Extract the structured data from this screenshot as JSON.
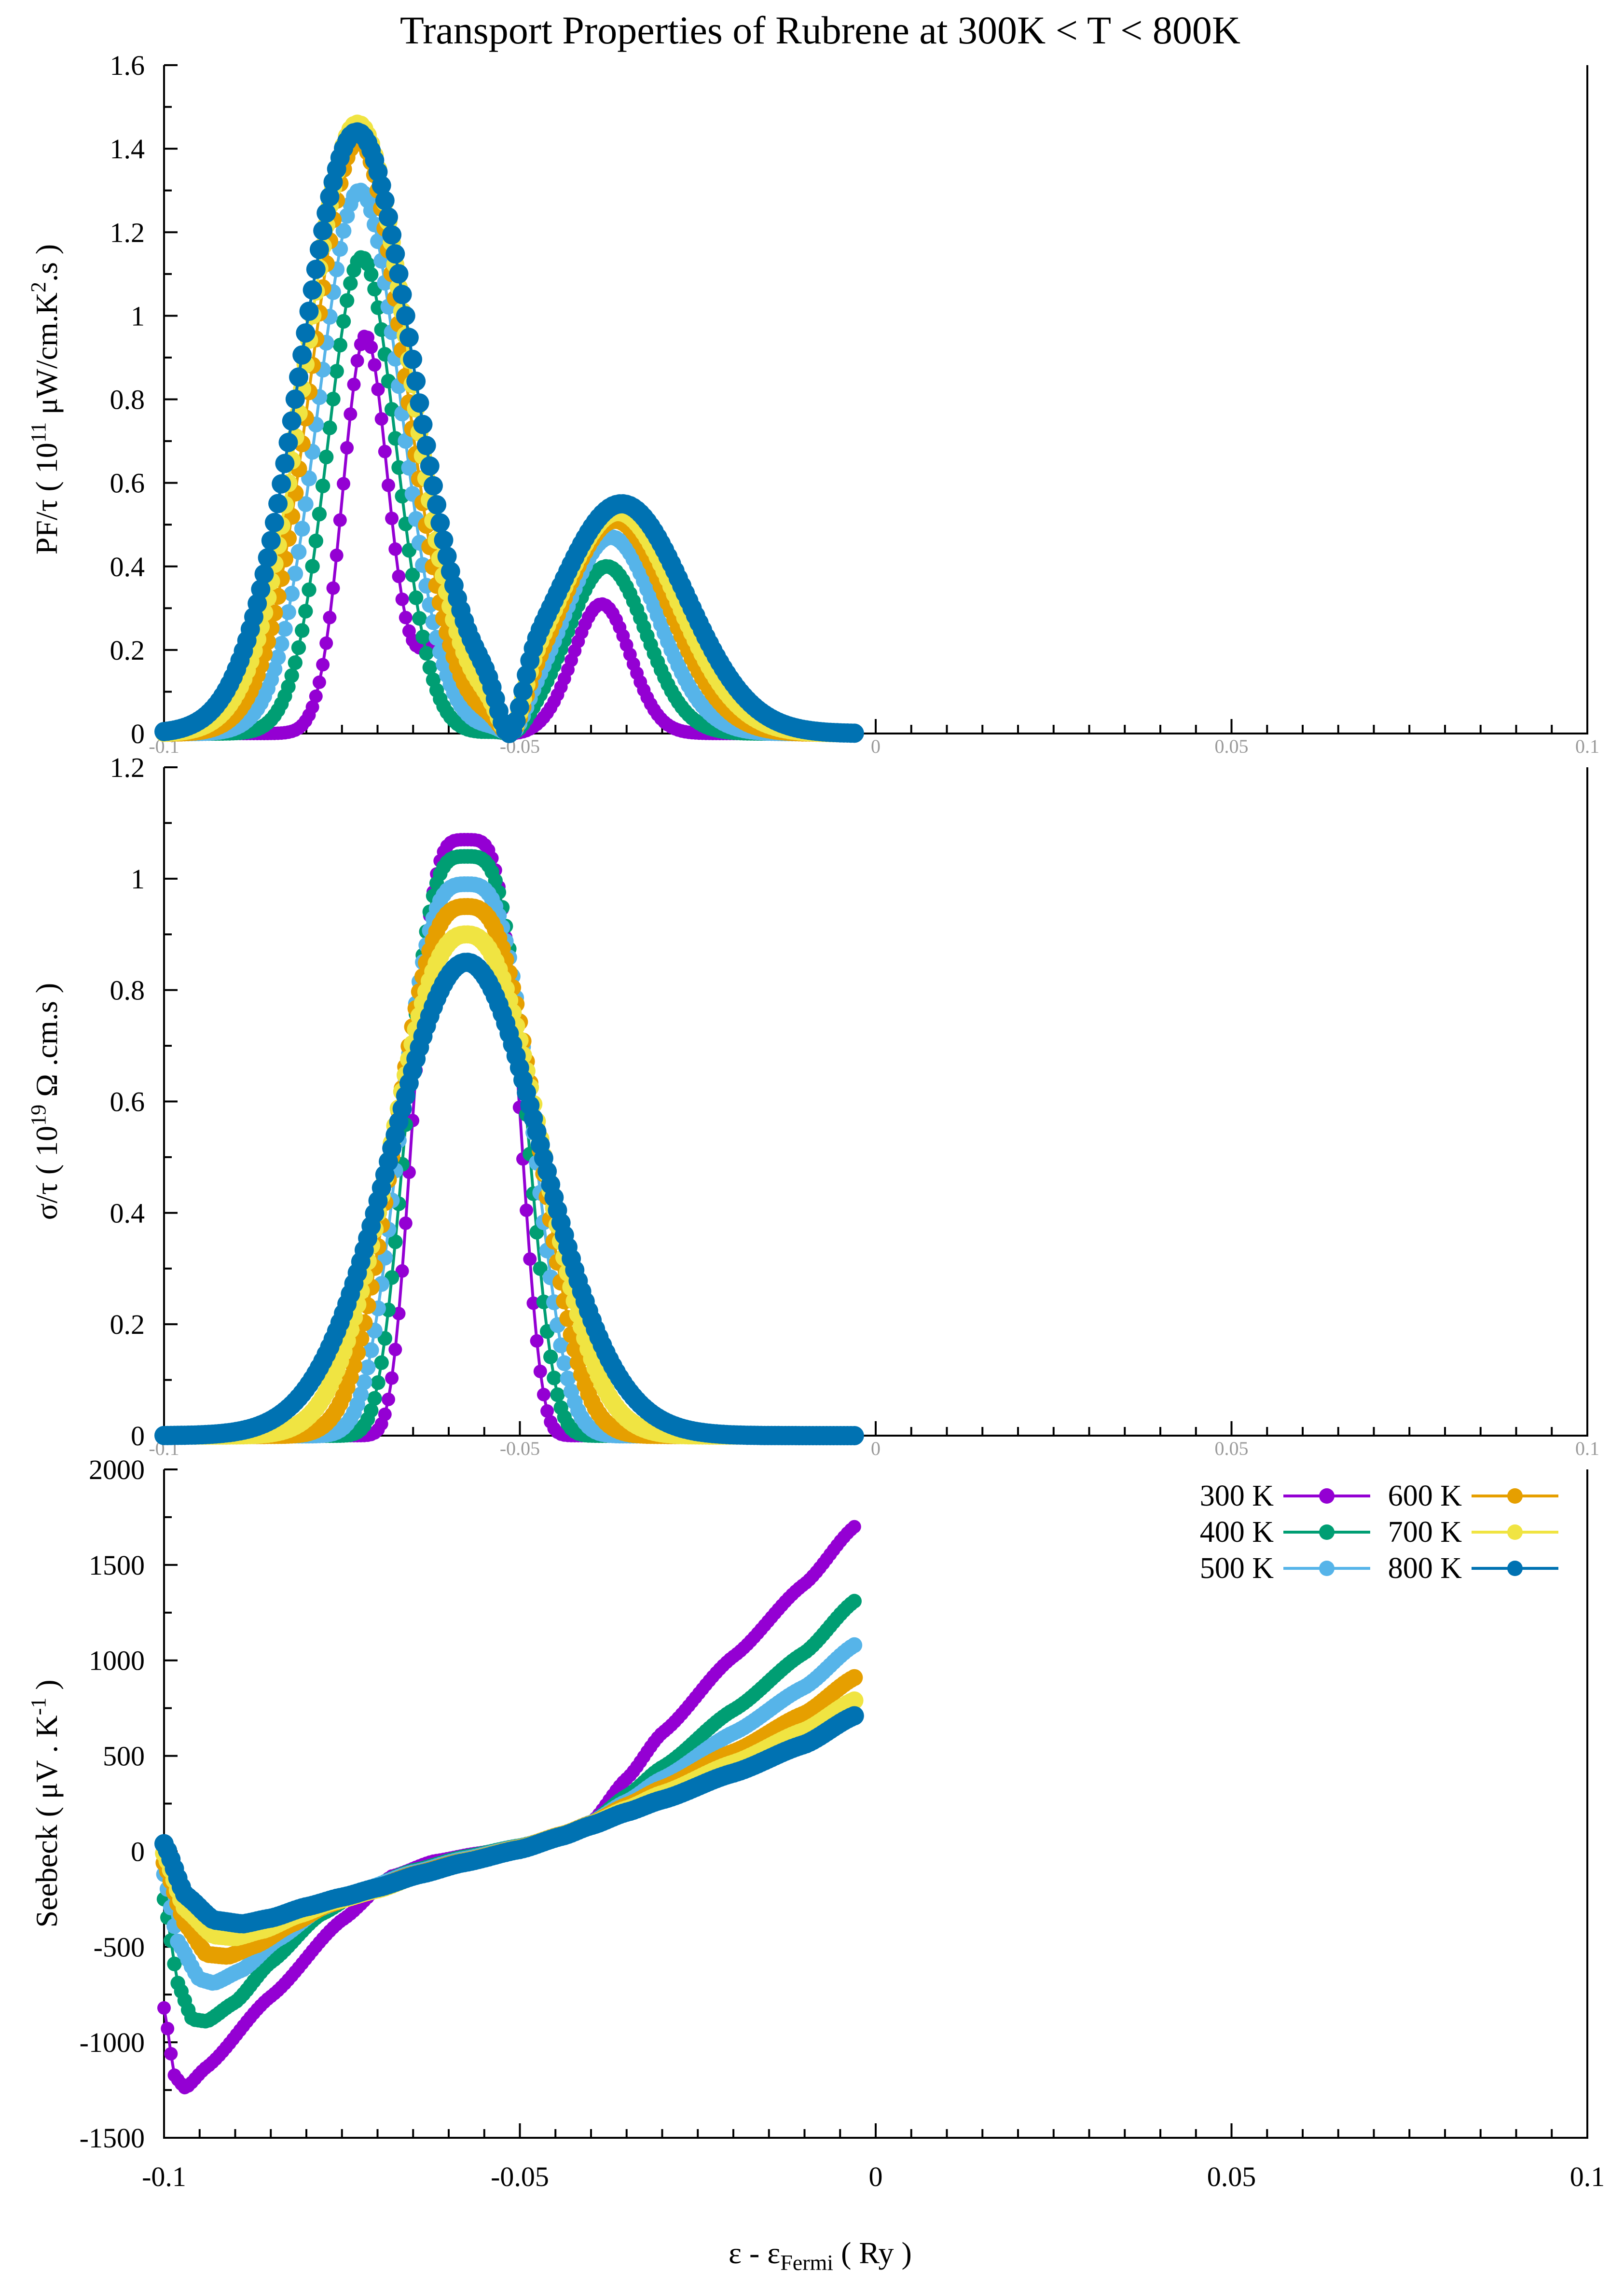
{
  "title": "Transport Properties of Rubrene at  300K < T < 800K",
  "xlabel": {
    "main": "ε - ε",
    "sub": "Fermi",
    "unit": " ( Ry )"
  },
  "colors": {
    "300 K": "#9400d3",
    "400 K": "#009e73",
    "500 K": "#56b4e9",
    "600 K": "#e69f00",
    "700 K": "#f0e442",
    "800 K": "#0072b2"
  },
  "legend": [
    "300 K",
    "400 K",
    "500 K",
    "600 K",
    "700 K",
    "800 K"
  ],
  "chart_data": [
    {
      "id": "pf",
      "type": "scatter",
      "ylabel": {
        "pre": "PF/τ ( 10",
        "sup1": "11",
        "mid": " μW/cm.K",
        "sup2": "2",
        "post": ".s )"
      },
      "xlim": [
        -0.1,
        0.1
      ],
      "ylim": [
        0,
        1.6
      ],
      "xticks": [
        "-0.1",
        "-0.05",
        "0",
        "0.05",
        "0.1"
      ],
      "yticks": [
        "0",
        "0.2",
        "0.4",
        "0.6",
        "0.8",
        "1",
        "1.2",
        "1.4",
        "1.6"
      ],
      "x_range": [
        -0.1,
        -0.003
      ],
      "series": [
        {
          "name": "300 K",
          "peak1": {
            "x": -0.0717,
            "y": 0.95,
            "w": 0.0032
          },
          "shoulder": {
            "x": -0.061,
            "y": 0.22,
            "w": 0.0035
          },
          "peak2": {
            "x": -0.0385,
            "y": 0.31,
            "w": 0.004
          },
          "dip_x": -0.0515
        },
        {
          "name": "400 K",
          "peak1": {
            "x": -0.0722,
            "y": 1.14,
            "w": 0.0048
          },
          "peak2": {
            "x": -0.0378,
            "y": 0.4,
            "w": 0.0055
          },
          "dip_x": -0.0515
        },
        {
          "name": "500 K",
          "peak1": {
            "x": -0.0725,
            "y": 1.3,
            "w": 0.0058
          },
          "peak2": {
            "x": -0.0372,
            "y": 0.47,
            "w": 0.0065
          },
          "dip_x": -0.0515
        },
        {
          "name": "600 K",
          "peak1": {
            "x": -0.0727,
            "y": 1.42,
            "w": 0.0066
          },
          "peak2": {
            "x": -0.0366,
            "y": 0.51,
            "w": 0.0075
          },
          "dip_x": -0.0515
        },
        {
          "name": "700 K",
          "peak1": {
            "x": -0.0728,
            "y": 1.46,
            "w": 0.0073
          },
          "peak2": {
            "x": -0.0362,
            "y": 0.53,
            "w": 0.0083
          },
          "dip_x": -0.0515
        },
        {
          "name": "800 K",
          "peak1": {
            "x": -0.0729,
            "y": 1.44,
            "w": 0.008
          },
          "peak2": {
            "x": -0.0357,
            "y": 0.55,
            "w": 0.009
          },
          "dip_x": -0.0515
        }
      ]
    },
    {
      "id": "sigma",
      "type": "scatter",
      "ylabel": {
        "pre": "σ/τ  ( 10",
        "sup1": "19",
        "mid": " Ω .cm.s )",
        "sup2": "",
        "post": ""
      },
      "xlim": [
        -0.1,
        0.1
      ],
      "ylim": [
        0,
        1.2
      ],
      "xticks": [
        "-0.1",
        "-0.05",
        "0",
        "0.05",
        "0.1"
      ],
      "yticks": [
        "0",
        "0.2",
        "0.4",
        "0.6",
        "0.8",
        "1",
        "1.2"
      ],
      "x_range": [
        -0.1,
        -0.003
      ],
      "series": [
        {
          "name": "300 K",
          "peak": {
            "x": -0.0575,
            "y": 1.07
          }
        },
        {
          "name": "400 K",
          "peak": {
            "x": -0.0575,
            "y": 1.04
          }
        },
        {
          "name": "500 K",
          "peak": {
            "x": -0.0575,
            "y": 0.99
          }
        },
        {
          "name": "600 K",
          "peak": {
            "x": -0.0575,
            "y": 0.95
          }
        },
        {
          "name": "700 K",
          "peak": {
            "x": -0.0575,
            "y": 0.9
          }
        },
        {
          "name": "800 K",
          "peak": {
            "x": -0.0575,
            "y": 0.85
          }
        }
      ]
    },
    {
      "id": "seebeck",
      "type": "scatter",
      "ylabel": {
        "pre": "Seebeck  ( μV . K",
        "sup1": "-1",
        "mid": " )",
        "sup2": "",
        "post": ""
      },
      "xlim": [
        -0.1,
        0.1
      ],
      "ylim": [
        -1500,
        2000
      ],
      "xticks": [
        "-0.1",
        "-0.05",
        "0",
        "0.05",
        "0.1"
      ],
      "yticks": [
        "-1500",
        "-1000",
        "-500",
        "0",
        "500",
        "1000",
        "1500",
        "2000"
      ],
      "x_range": [
        -0.1,
        -0.003
      ],
      "series": [
        {
          "name": "300 K",
          "points": [
            [
              -0.1,
              -820
            ],
            [
              -0.0985,
              -1180
            ],
            [
              -0.097,
              -1240
            ],
            [
              -0.094,
              -1130
            ],
            [
              -0.085,
              -760
            ],
            [
              -0.075,
              -360
            ],
            [
              -0.068,
              -130
            ],
            [
              -0.062,
              -50
            ],
            [
              -0.056,
              -10
            ],
            [
              -0.05,
              30
            ],
            [
              -0.044,
              80
            ],
            [
              -0.04,
              150
            ],
            [
              -0.035,
              380
            ],
            [
              -0.03,
              620
            ],
            [
              -0.02,
              1020
            ],
            [
              -0.01,
              1400
            ],
            [
              -0.003,
              1700
            ]
          ]
        },
        {
          "name": "400 K",
          "points": [
            [
              -0.1,
              -250
            ],
            [
              -0.098,
              -700
            ],
            [
              -0.096,
              -880
            ],
            [
              -0.094,
              -890
            ],
            [
              -0.09,
              -790
            ],
            [
              -0.085,
              -580
            ],
            [
              -0.078,
              -330
            ],
            [
              -0.072,
              -200
            ],
            [
              -0.065,
              -100
            ],
            [
              -0.058,
              -30
            ],
            [
              -0.05,
              30
            ],
            [
              -0.044,
              90
            ],
            [
              -0.04,
              150
            ],
            [
              -0.035,
              290
            ],
            [
              -0.03,
              440
            ],
            [
              -0.02,
              740
            ],
            [
              -0.01,
              1040
            ],
            [
              -0.003,
              1310
            ]
          ]
        },
        {
          "name": "500 K",
          "points": [
            [
              -0.1,
              -120
            ],
            [
              -0.098,
              -480
            ],
            [
              -0.095,
              -670
            ],
            [
              -0.093,
              -690
            ],
            [
              -0.089,
              -620
            ],
            [
              -0.084,
              -460
            ],
            [
              -0.078,
              -300
            ],
            [
              -0.072,
              -200
            ],
            [
              -0.065,
              -110
            ],
            [
              -0.058,
              -40
            ],
            [
              -0.05,
              25
            ],
            [
              -0.044,
              90
            ],
            [
              -0.04,
              150
            ],
            [
              -0.035,
              260
            ],
            [
              -0.03,
              380
            ],
            [
              -0.02,
              620
            ],
            [
              -0.01,
              860
            ],
            [
              -0.003,
              1080
            ]
          ]
        },
        {
          "name": "600 K",
          "points": [
            [
              -0.1,
              -60
            ],
            [
              -0.097,
              -380
            ],
            [
              -0.094,
              -540
            ],
            [
              -0.091,
              -550
            ],
            [
              -0.087,
              -490
            ],
            [
              -0.082,
              -380
            ],
            [
              -0.077,
              -280
            ],
            [
              -0.071,
              -200
            ],
            [
              -0.065,
              -120
            ],
            [
              -0.058,
              -50
            ],
            [
              -0.05,
              20
            ],
            [
              -0.044,
              90
            ],
            [
              -0.04,
              145
            ],
            [
              -0.035,
              240
            ],
            [
              -0.03,
              330
            ],
            [
              -0.02,
              520
            ],
            [
              -0.01,
              720
            ],
            [
              -0.003,
              910
            ]
          ]
        },
        {
          "name": "700 K",
          "points": [
            [
              -0.1,
              -10
            ],
            [
              -0.097,
              -300
            ],
            [
              -0.093,
              -440
            ],
            [
              -0.09,
              -450
            ],
            [
              -0.086,
              -410
            ],
            [
              -0.081,
              -330
            ],
            [
              -0.076,
              -260
            ],
            [
              -0.07,
              -200
            ],
            [
              -0.064,
              -120
            ],
            [
              -0.058,
              -55
            ],
            [
              -0.05,
              15
            ],
            [
              -0.044,
              85
            ],
            [
              -0.04,
              140
            ],
            [
              -0.035,
              220
            ],
            [
              -0.03,
              300
            ],
            [
              -0.02,
              460
            ],
            [
              -0.01,
              630
            ],
            [
              -0.003,
              790
            ]
          ]
        },
        {
          "name": "800 K",
          "points": [
            [
              -0.1,
              40
            ],
            [
              -0.097,
              -230
            ],
            [
              -0.093,
              -360
            ],
            [
              -0.089,
              -380
            ],
            [
              -0.085,
              -350
            ],
            [
              -0.08,
              -290
            ],
            [
              -0.075,
              -240
            ],
            [
              -0.07,
              -190
            ],
            [
              -0.064,
              -120
            ],
            [
              -0.058,
              -60
            ],
            [
              -0.05,
              10
            ],
            [
              -0.044,
              80
            ],
            [
              -0.04,
              135
            ],
            [
              -0.035,
              205
            ],
            [
              -0.03,
              270
            ],
            [
              -0.02,
              410
            ],
            [
              -0.01,
              560
            ],
            [
              -0.003,
              710
            ]
          ]
        }
      ]
    }
  ]
}
